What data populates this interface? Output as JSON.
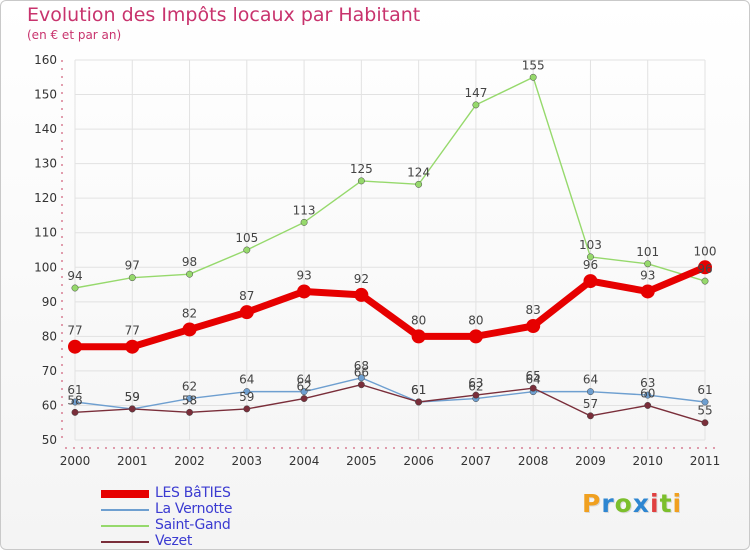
{
  "title": "Evolution des Impôts locaux par Habitant",
  "subtitle": "(en € et par an)",
  "brand": {
    "letters": [
      "P",
      "r",
      "o",
      "x",
      "i",
      "t",
      "i"
    ],
    "colors": [
      "#f0a020",
      "#2e86d1",
      "#7cbf2c",
      "#2e86d1",
      "#e04040",
      "#7cbf2c",
      "#f0a020"
    ]
  },
  "chart_data": {
    "type": "line",
    "title": "Evolution des Impôts locaux par Habitant",
    "ylabel": "(en € et par an)",
    "xlabel": "",
    "ylim": [
      50,
      160
    ],
    "yticks": [
      "50",
      "60",
      "70",
      "80",
      "90",
      "100",
      "110",
      "120",
      "130",
      "140",
      "150",
      "160"
    ],
    "categories": [
      "2000",
      "2001",
      "2002",
      "2003",
      "2004",
      "2005",
      "2006",
      "2007",
      "2008",
      "2009",
      "2010",
      "2011"
    ],
    "series": [
      {
        "name": "LES BâTIES",
        "color": "#e60000",
        "thick": true,
        "values": [
          77,
          77,
          82,
          87,
          93,
          92,
          80,
          80,
          83,
          96,
          93,
          100
        ],
        "labels": [
          "77",
          "77",
          "82",
          "87",
          "93",
          "92",
          "80",
          "80",
          "83",
          "96",
          "93",
          "100"
        ]
      },
      {
        "name": "La Vernotte",
        "color": "#6e9fd0",
        "thick": false,
        "values": [
          61,
          59,
          62,
          64,
          64,
          68,
          61,
          62,
          64,
          64,
          63,
          61
        ],
        "labels": [
          "61",
          "59",
          "62",
          "64",
          "64",
          "68",
          "61",
          "62",
          "64",
          "64",
          "63",
          "61"
        ]
      },
      {
        "name": "Saint-Gand",
        "color": "#96d96c",
        "thick": false,
        "values": [
          94,
          97,
          98,
          105,
          113,
          125,
          124,
          147,
          155,
          103,
          101,
          96
        ],
        "labels": [
          "94",
          "97",
          "98",
          "105",
          "113",
          "125",
          "124",
          "147",
          "155",
          "103",
          "101",
          "96"
        ]
      },
      {
        "name": "Vezet",
        "color": "#7a2e3a",
        "thick": false,
        "values": [
          58,
          59,
          58,
          59,
          62,
          66,
          61,
          63,
          65,
          57,
          60,
          55
        ],
        "labels": [
          "58",
          "59",
          "58",
          "59",
          "62",
          "66",
          "61",
          "63",
          "65",
          "57",
          "60",
          "55"
        ]
      }
    ]
  }
}
